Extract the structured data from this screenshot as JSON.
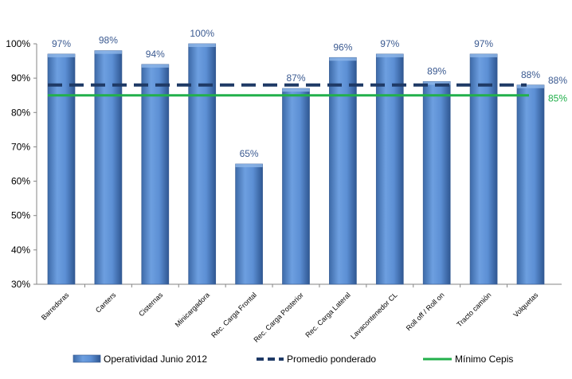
{
  "chart_data": {
    "type": "bar",
    "categories": [
      "Barredoras",
      "Canters",
      "Cisternas",
      "Minicargadora",
      "Rec. Carga Frontal",
      "Rec. Carga Posterior",
      "Rec. Carga Lateral",
      "Lavacontenedor CL",
      "Roll off / Roll on",
      "Tracto camión",
      "Volquetas"
    ],
    "series": [
      {
        "name": "Operatividad Junio 2012",
        "values": [
          97,
          98,
          94,
          100,
          65,
          87,
          96,
          97,
          89,
          97,
          88
        ],
        "labels": [
          "97%",
          "98%",
          "94%",
          "100%",
          "65%",
          "87%",
          "96%",
          "97%",
          "89%",
          "97%",
          "88%"
        ],
        "color": "#4f81bd"
      },
      {
        "name": "Promedio ponderado",
        "value": 88,
        "label": "88%",
        "color": "#1f3a66",
        "style": "dashed"
      },
      {
        "name": "Mínimo Cepis",
        "value": 85,
        "label": "85%",
        "color": "#22b04b",
        "style": "solid"
      }
    ],
    "ylim": [
      30,
      100
    ],
    "yticks": [
      30,
      40,
      50,
      60,
      70,
      80,
      90,
      100
    ],
    "ytick_labels": [
      "30%",
      "40%",
      "50%",
      "60%",
      "70%",
      "80%",
      "90%",
      "100%"
    ],
    "grid": false,
    "legend_position": "bottom"
  }
}
